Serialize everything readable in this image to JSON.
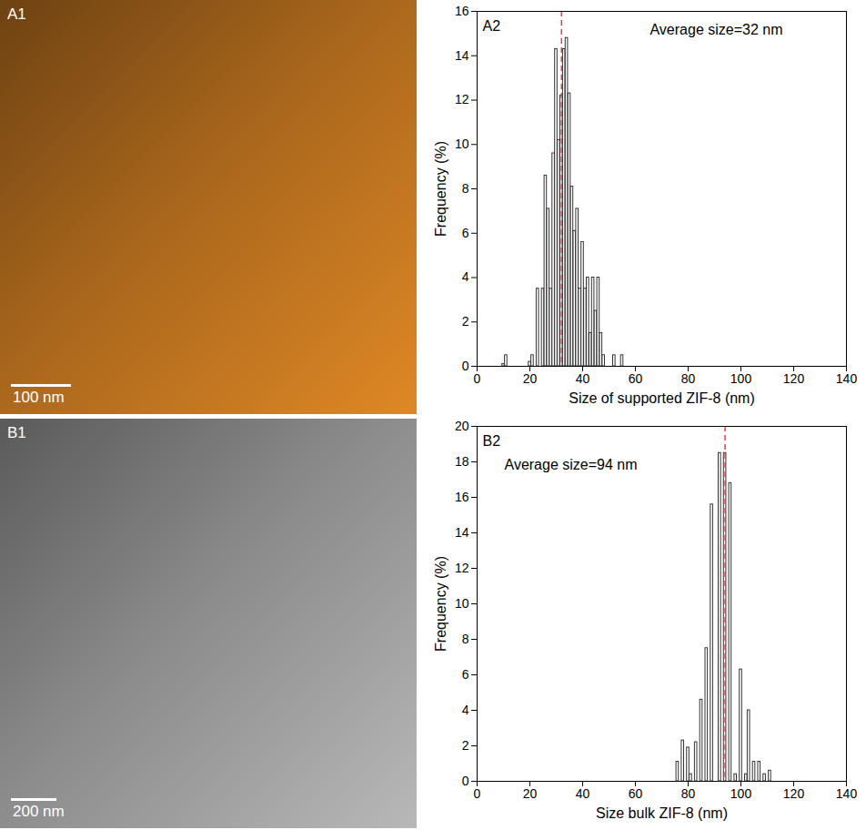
{
  "images": [
    {
      "panel": "A1",
      "scale_bar": "100 nm",
      "color": "#a8661c"
    },
    {
      "panel": "B1",
      "scale_bar": "200 nm",
      "color": "#8a8a8a"
    }
  ],
  "chart_data": [
    {
      "type": "bar",
      "panel": "A2",
      "annotation": "Average size=32 nm",
      "average": 32,
      "average_color": "#e8403a",
      "color": "#333333",
      "x_label": "Size of supported ZIF-8 (nm)",
      "y_label": "Frequency (%)",
      "x": [
        10,
        11,
        20,
        21,
        23,
        25,
        26,
        27,
        28,
        29,
        30,
        31,
        32,
        33,
        34,
        35,
        36,
        37,
        38,
        39,
        40,
        41,
        42,
        43,
        44,
        45,
        46,
        47,
        48,
        52,
        55
      ],
      "values": [
        0.1,
        0.5,
        0.2,
        0.5,
        3.5,
        3.5,
        8.6,
        7.1,
        3.5,
        9.6,
        14.3,
        10.2,
        12.2,
        14.3,
        14.8,
        12.3,
        8.1,
        6.1,
        7.1,
        3.5,
        5.6,
        3.5,
        4.0,
        1.5,
        4.0,
        2.5,
        4.0,
        1.5,
        0.5,
        0.5,
        0.5
      ],
      "xlim": [
        0,
        140
      ],
      "xticks": [
        0,
        20,
        40,
        60,
        80,
        100,
        120,
        140
      ],
      "ylim": [
        0,
        16
      ],
      "yticks": [
        0,
        2,
        4,
        6,
        8,
        10,
        12,
        14,
        16
      ]
    },
    {
      "type": "bar",
      "panel": "B2",
      "annotation": "Average size=94 nm",
      "average": 94,
      "average_color": "#e8403a",
      "color": "#333333",
      "x_label": "Size bulk ZIF-8 (nm)",
      "y_label": "Frequency (%)",
      "x": [
        76,
        78,
        80,
        81,
        83,
        85,
        87,
        89,
        92,
        94,
        96,
        98,
        100,
        102,
        103,
        105,
        107,
        109,
        111
      ],
      "values": [
        1.1,
        2.3,
        1.9,
        0.4,
        2.2,
        4.6,
        7.5,
        15.6,
        18.5,
        18.5,
        16.8,
        0.4,
        6.3,
        0.4,
        4.0,
        1.1,
        1.1,
        0.4,
        0.6
      ],
      "xlim": [
        0,
        140
      ],
      "xticks": [
        0,
        20,
        40,
        60,
        80,
        100,
        120,
        140
      ],
      "ylim": [
        0,
        20
      ],
      "yticks": [
        0,
        2,
        4,
        6,
        8,
        10,
        12,
        14,
        16,
        18,
        20
      ]
    }
  ]
}
